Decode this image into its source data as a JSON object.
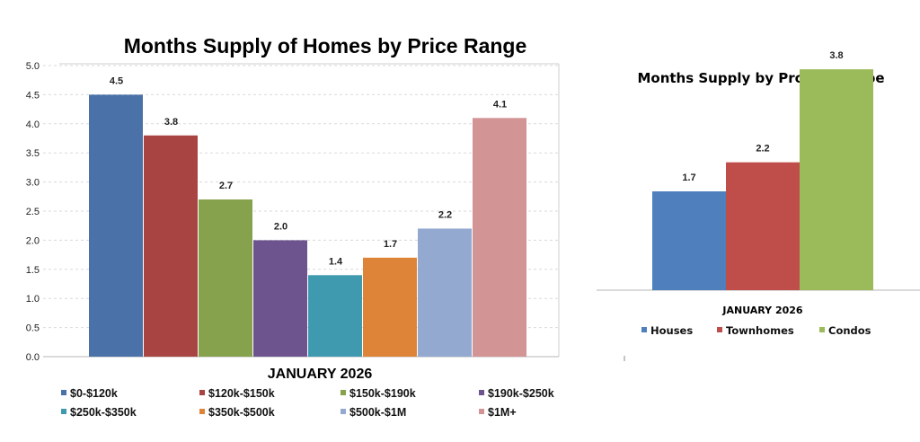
{
  "chart_data": [
    {
      "type": "bar",
      "title": "Months Supply of Homes by Price Range",
      "xlabel": "JANUARY 2026",
      "ylabel": "",
      "ylim": [
        0,
        5.0
      ],
      "y_ticks": [
        "0.0",
        "0.5",
        "1.0",
        "1.5",
        "2.0",
        "2.5",
        "3.0",
        "3.5",
        "4.0",
        "4.5",
        "5.0"
      ],
      "grid": true,
      "legend_position": "bottom",
      "series": [
        {
          "name": "$0-$120k",
          "value": 4.5,
          "label": "4.5",
          "color": "#4A71A8"
        },
        {
          "name": "$120k-$150k",
          "value": 3.8,
          "label": "3.8",
          "color": "#A84442"
        },
        {
          "name": "$150k-$190k",
          "value": 2.7,
          "label": "2.7",
          "color": "#86A24C"
        },
        {
          "name": "$190k-$250k",
          "value": 2.0,
          "label": "2.0",
          "color": "#6E548E"
        },
        {
          "name": "$250k-$350k",
          "value": 1.4,
          "label": "1.4",
          "color": "#3F9AB0"
        },
        {
          "name": "$350k-$500k",
          "value": 1.7,
          "label": "1.7",
          "color": "#DE8438"
        },
        {
          "name": "$500k-$1M",
          "value": 2.2,
          "label": "2.2",
          "color": "#93A9D0"
        },
        {
          "name": "$1M+",
          "value": 4.1,
          "label": "4.1",
          "color": "#D29494"
        }
      ]
    },
    {
      "type": "bar",
      "title": "Months Supply by Property Type",
      "xlabel": "JANUARY 2026",
      "ylabel": "",
      "grid": false,
      "legend_position": "bottom",
      "series": [
        {
          "name": "Houses",
          "value": 1.7,
          "label": "1.7",
          "color": "#4F7FBD"
        },
        {
          "name": "Townhomes",
          "value": 2.2,
          "label": "2.2",
          "color": "#BF4E4B"
        },
        {
          "name": "Condos",
          "value": 3.8,
          "label": "3.8",
          "color": "#9BBB5A"
        }
      ]
    }
  ]
}
